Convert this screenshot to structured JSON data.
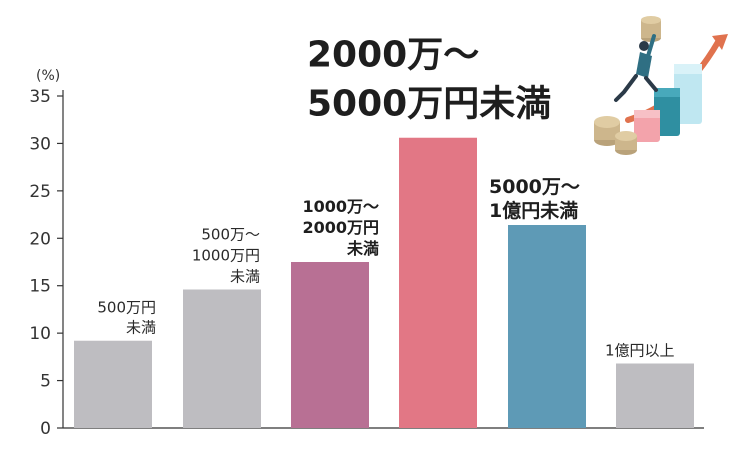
{
  "chart_data": {
    "type": "bar",
    "unit": "(%)",
    "ylim": [
      0,
      35
    ],
    "yticks": [
      0,
      5,
      10,
      15,
      20,
      25,
      30,
      35
    ],
    "categories": [
      [
        "500万円",
        "未満"
      ],
      [
        "500万～",
        "1000万円",
        "未満"
      ],
      [
        "1000万～",
        "2000万円",
        "未満"
      ],
      [
        "2000万～",
        "5000万円未満"
      ],
      [
        "5000万～",
        "1億円未満"
      ],
      [
        "1億円以上"
      ]
    ],
    "values": [
      9.2,
      14.6,
      17.5,
      30.6,
      21.4,
      6.8
    ],
    "colors": [
      "#bebdc1",
      "#bebdc1",
      "#b87094",
      "#e27785",
      "#5e9ab6",
      "#bebdc1"
    ],
    "title": "",
    "xlabel": "",
    "ylabel": ""
  }
}
